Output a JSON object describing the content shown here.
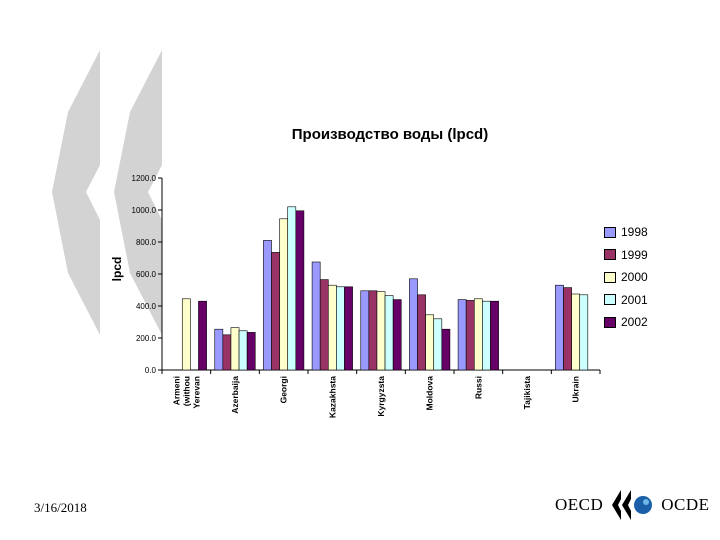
{
  "slide": {
    "date": "3/16/2018",
    "logo_left": "OECD",
    "logo_right": "OCDE"
  },
  "chart_data": {
    "type": "bar",
    "title": "Производство воды (lpcd)",
    "ylabel": "lpcd",
    "xlabel": "",
    "ylim": [
      0,
      1200
    ],
    "yticks": [
      "0.0",
      "200.0",
      "400.0",
      "600.0",
      "800.0",
      "1000.0",
      "1200.0"
    ],
    "categories": [
      [
        "Armeni",
        "(withou",
        "Yerevan"
      ],
      [
        "Azerbaija"
      ],
      [
        "Georgi"
      ],
      [
        "Kazakhsta"
      ],
      [
        "Kyrgyzsta"
      ],
      [
        "Moldova"
      ],
      [
        "Russi"
      ],
      [
        "Tajikista"
      ],
      [
        "Ukrain"
      ]
    ],
    "legend_position": "right",
    "grid": false,
    "series": [
      {
        "name": "1998",
        "color": "#9999ff",
        "values": [
          null,
          255,
          810,
          675,
          495,
          570,
          440,
          null,
          530
        ]
      },
      {
        "name": "1999",
        "color": "#993366",
        "values": [
          null,
          220,
          735,
          565,
          495,
          470,
          435,
          null,
          515
        ]
      },
      {
        "name": "2000",
        "color": "#ffffcc",
        "values": [
          445,
          265,
          945,
          530,
          490,
          345,
          445,
          null,
          475
        ]
      },
      {
        "name": "2001",
        "color": "#ccffff",
        "values": [
          null,
          245,
          1020,
          520,
          465,
          320,
          430,
          null,
          470
        ]
      },
      {
        "name": "2002",
        "color": "#660066",
        "values": [
          430,
          235,
          995,
          520,
          440,
          255,
          430,
          null,
          null
        ]
      }
    ]
  }
}
